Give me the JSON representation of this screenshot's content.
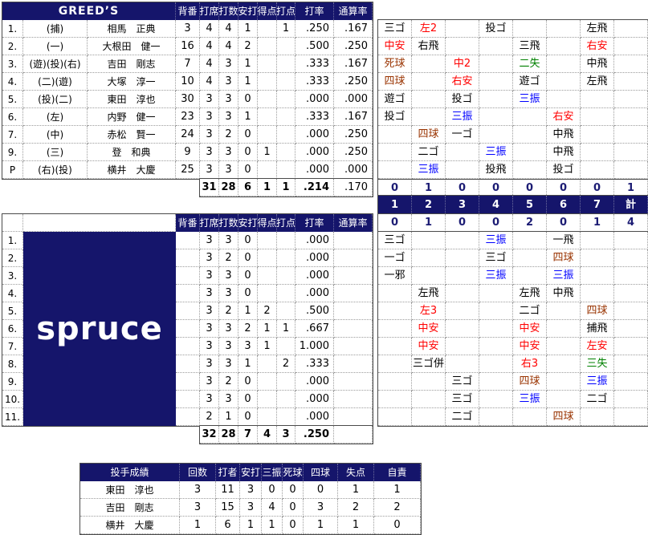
{
  "colors": {
    "header_bg": "#15156b",
    "score_text": "#1c1c74",
    "result_black": "#000000",
    "result_hit": "#ff0000",
    "result_strikeout": "#0000ff",
    "result_error": "#008000",
    "result_walk": "#993300"
  },
  "stat_headers": [
    "背番",
    "打席",
    "打数",
    "安打",
    "得点",
    "打点",
    "打率",
    "通算率"
  ],
  "innings": [
    "1",
    "2",
    "3",
    "4",
    "5",
    "6",
    "7",
    "計"
  ],
  "top_team": {
    "name": "GREED’S",
    "players": [
      [
        "1.",
        "(捕)",
        "相馬　正典",
        "3",
        "4",
        "4",
        "1",
        "",
        "1",
        ".250",
        ".167"
      ],
      [
        "2.",
        "(一)",
        "大根田　健一",
        "16",
        "4",
        "4",
        "2",
        "",
        "",
        ".500",
        ".250"
      ],
      [
        "3.",
        "(遊)(投)(右)",
        "吉田　剛志",
        "7",
        "4",
        "3",
        "1",
        "",
        "",
        ".333",
        ".167"
      ],
      [
        "4.",
        "(二)(遊)",
        "大塚　淳一",
        "10",
        "4",
        "3",
        "1",
        "",
        "",
        ".333",
        ".250"
      ],
      [
        "5.",
        "(投)(二)",
        "東田　淳也",
        "30",
        "3",
        "3",
        "0",
        "",
        "",
        ".000",
        ".000"
      ],
      [
        "6.",
        "(左)",
        "内野　健一",
        "23",
        "3",
        "3",
        "1",
        "",
        "",
        ".333",
        ".167"
      ],
      [
        "7.",
        "(中)",
        "赤松　賢一",
        "24",
        "3",
        "2",
        "0",
        "",
        "",
        ".000",
        ".250"
      ],
      [
        "9.",
        "(三)",
        "登　和典",
        "9",
        "3",
        "3",
        "0",
        "1",
        "",
        ".000",
        ".250"
      ],
      [
        "P",
        "(右)(投)",
        "横井　大慶",
        "25",
        "3",
        "3",
        "0",
        "",
        "",
        ".000",
        ".000"
      ]
    ],
    "totals": [
      "31",
      "28",
      "6",
      "1",
      "1",
      ".214",
      ".170"
    ],
    "atbats": [
      [
        "三ゴ|k",
        "左2|r",
        "",
        "投ゴ|k",
        "",
        "",
        "左飛|k",
        ""
      ],
      [
        "中安|r",
        "右飛|k",
        "",
        "",
        "三飛|k",
        "",
        "右安|r",
        ""
      ],
      [
        "死球|w",
        "",
        "中2|r",
        "",
        "二失|g",
        "",
        "中飛|k",
        ""
      ],
      [
        "四球|w",
        "",
        "右安|r",
        "",
        "遊ゴ|k",
        "",
        "左飛|k",
        ""
      ],
      [
        "遊ゴ|k",
        "",
        "投ゴ|k",
        "",
        "三振|b",
        "",
        "",
        ""
      ],
      [
        "投ゴ|k",
        "",
        "三振|b",
        "",
        "",
        "右安|r",
        "",
        ""
      ],
      [
        "",
        "四球|w",
        "一ゴ|k",
        "",
        "",
        "中飛|k",
        "",
        ""
      ],
      [
        "",
        "二ゴ|k",
        "",
        "三振|b",
        "",
        "中飛|k",
        "",
        ""
      ],
      [
        "",
        "三振|b",
        "",
        "投飛|k",
        "",
        "投ゴ|k",
        "",
        ""
      ]
    ],
    "scores": [
      "0",
      "1",
      "0",
      "0",
      "0",
      "0",
      "0",
      "1"
    ]
  },
  "bottom_team": {
    "name": "spruce",
    "players": [
      [
        "1.",
        "",
        "3",
        "3",
        "0",
        "",
        "",
        ".000",
        ""
      ],
      [
        "2.",
        "",
        "3",
        "2",
        "0",
        "",
        "",
        ".000",
        ""
      ],
      [
        "3.",
        "",
        "3",
        "3",
        "0",
        "",
        "",
        ".000",
        ""
      ],
      [
        "4.",
        "",
        "3",
        "3",
        "0",
        "",
        "",
        ".000",
        ""
      ],
      [
        "5.",
        "",
        "3",
        "2",
        "1",
        "2",
        "",
        ".500",
        ""
      ],
      [
        "6.",
        "",
        "3",
        "3",
        "2",
        "1",
        "1",
        ".667",
        ""
      ],
      [
        "7.",
        "",
        "3",
        "3",
        "3",
        "1",
        "",
        "1.000",
        ""
      ],
      [
        "8.",
        "",
        "3",
        "3",
        "1",
        "",
        "2",
        ".333",
        ""
      ],
      [
        "9.",
        "",
        "3",
        "2",
        "0",
        "",
        "",
        ".000",
        ""
      ],
      [
        "10.",
        "",
        "3",
        "3",
        "0",
        "",
        "",
        ".000",
        ""
      ],
      [
        "11.",
        "",
        "2",
        "1",
        "0",
        "",
        "",
        ".000",
        ""
      ]
    ],
    "totals": [
      "32",
      "28",
      "7",
      "4",
      "3",
      ".250",
      ""
    ],
    "atbats": [
      [
        "三ゴ|k",
        "",
        "",
        "三振|b",
        "",
        "一飛|k",
        "",
        ""
      ],
      [
        "一ゴ|k",
        "",
        "",
        "三ゴ|k",
        "",
        "四球|w",
        "",
        ""
      ],
      [
        "一邪|k",
        "",
        "",
        "三振|b",
        "",
        "三振|b",
        "",
        ""
      ],
      [
        "",
        "左飛|k",
        "",
        "",
        "左飛|k",
        "中飛|k",
        "",
        ""
      ],
      [
        "",
        "左3|r",
        "",
        "",
        "二ゴ|k",
        "",
        "四球|w",
        ""
      ],
      [
        "",
        "中安|r",
        "",
        "",
        "中安|r",
        "",
        "捕飛|k",
        ""
      ],
      [
        "",
        "中安|r",
        "",
        "",
        "中安|r",
        "",
        "左安|r",
        ""
      ],
      [
        "",
        "三ゴ併|k",
        "",
        "",
        "右3|r",
        "",
        "三失|g",
        ""
      ],
      [
        "",
        "",
        "三ゴ|k",
        "",
        "四球|w",
        "",
        "三振|b",
        ""
      ],
      [
        "",
        "",
        "三ゴ|k",
        "",
        "三振|b",
        "",
        "二ゴ|k",
        ""
      ],
      [
        "",
        "",
        "二ゴ|k",
        "",
        "",
        "四球|w",
        "",
        ""
      ]
    ],
    "scores": [
      "0",
      "1",
      "0",
      "0",
      "2",
      "0",
      "1",
      "4"
    ]
  },
  "pitchers": {
    "title": "投手成績",
    "headers": [
      "回数",
      "打者",
      "安打",
      "三振",
      "死球",
      "四球",
      "失点",
      "自責"
    ],
    "rows": [
      [
        "東田　淳也",
        "3",
        "11",
        "3",
        "0",
        "0",
        "0",
        "1",
        "1"
      ],
      [
        "吉田　剛志",
        "3",
        "15",
        "3",
        "4",
        "0",
        "3",
        "2",
        "2"
      ],
      [
        "横井　大慶",
        "1",
        "6",
        "1",
        "1",
        "0",
        "1",
        "1",
        "0"
      ]
    ]
  }
}
